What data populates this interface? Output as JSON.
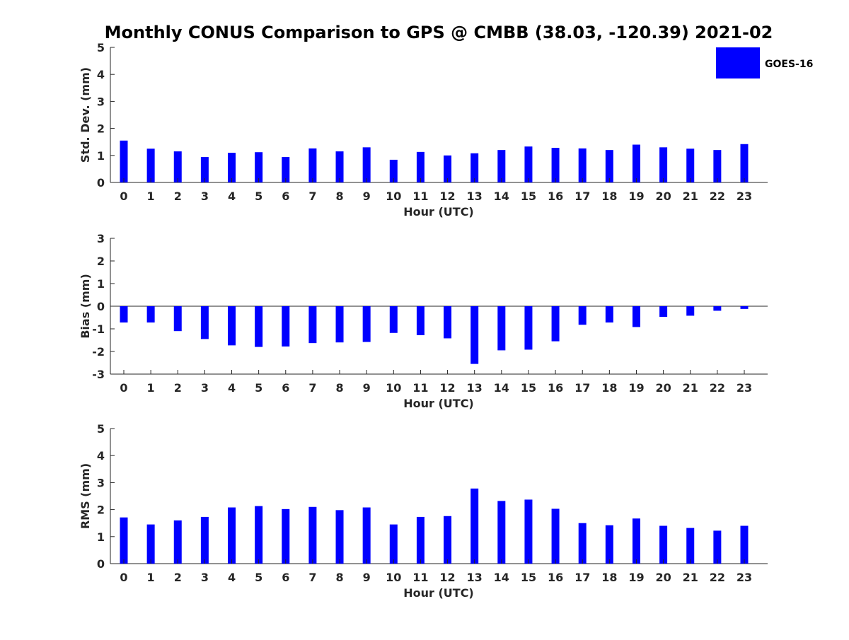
{
  "title": "Monthly CONUS Comparison to GPS @ CMBB (38.03, -120.39) 2021-02",
  "legend": {
    "label": "GOES-16",
    "color": "#0000ff"
  },
  "chart_data": [
    {
      "type": "bar",
      "xlabel": "Hour (UTC)",
      "ylabel": "Std. Dev. (mm)",
      "ylim": [
        0,
        5
      ],
      "yticks": [
        0,
        1,
        2,
        3,
        4,
        5
      ],
      "categories": [
        "0",
        "1",
        "2",
        "3",
        "4",
        "5",
        "6",
        "7",
        "8",
        "9",
        "10",
        "11",
        "12",
        "13",
        "14",
        "15",
        "16",
        "17",
        "18",
        "19",
        "20",
        "21",
        "22",
        "23"
      ],
      "series": [
        {
          "name": "GOES-16",
          "color": "#0000ff",
          "values": [
            1.55,
            1.25,
            1.15,
            0.94,
            1.1,
            1.12,
            0.94,
            1.26,
            1.15,
            1.3,
            0.84,
            1.13,
            1.0,
            1.08,
            1.2,
            1.33,
            1.28,
            1.26,
            1.2,
            1.4,
            1.3,
            1.25,
            1.2,
            1.42
          ]
        }
      ],
      "grid": false
    },
    {
      "type": "bar",
      "xlabel": "Hour (UTC)",
      "ylabel": "Bias (mm)",
      "ylim": [
        -3,
        3
      ],
      "yticks": [
        -3,
        -2,
        -1,
        0,
        1,
        2,
        3
      ],
      "categories": [
        "0",
        "1",
        "2",
        "3",
        "4",
        "5",
        "6",
        "7",
        "8",
        "9",
        "10",
        "11",
        "12",
        "13",
        "14",
        "15",
        "16",
        "17",
        "18",
        "19",
        "20",
        "21",
        "22",
        "23"
      ],
      "series": [
        {
          "name": "GOES-16",
          "color": "#0000ff",
          "values": [
            -0.72,
            -0.72,
            -1.1,
            -1.45,
            -1.73,
            -1.8,
            -1.78,
            -1.63,
            -1.6,
            -1.58,
            -1.18,
            -1.28,
            -1.42,
            -2.55,
            -1.95,
            -1.92,
            -1.55,
            -0.82,
            -0.72,
            -0.92,
            -0.47,
            -0.42,
            -0.2,
            -0.12
          ]
        }
      ],
      "grid": false
    },
    {
      "type": "bar",
      "xlabel": "Hour (UTC)",
      "ylabel": "RMS (mm)",
      "ylim": [
        0,
        5
      ],
      "yticks": [
        0,
        1,
        2,
        3,
        4,
        5
      ],
      "categories": [
        "0",
        "1",
        "2",
        "3",
        "4",
        "5",
        "6",
        "7",
        "8",
        "9",
        "10",
        "11",
        "12",
        "13",
        "14",
        "15",
        "16",
        "17",
        "18",
        "19",
        "20",
        "21",
        "22",
        "23"
      ],
      "series": [
        {
          "name": "GOES-16",
          "color": "#0000ff",
          "values": [
            1.71,
            1.45,
            1.6,
            1.73,
            2.08,
            2.13,
            2.02,
            2.1,
            1.98,
            2.08,
            1.45,
            1.73,
            1.76,
            2.78,
            2.32,
            2.37,
            2.03,
            1.5,
            1.42,
            1.67,
            1.4,
            1.32,
            1.22,
            1.4
          ]
        }
      ],
      "grid": false
    }
  ]
}
